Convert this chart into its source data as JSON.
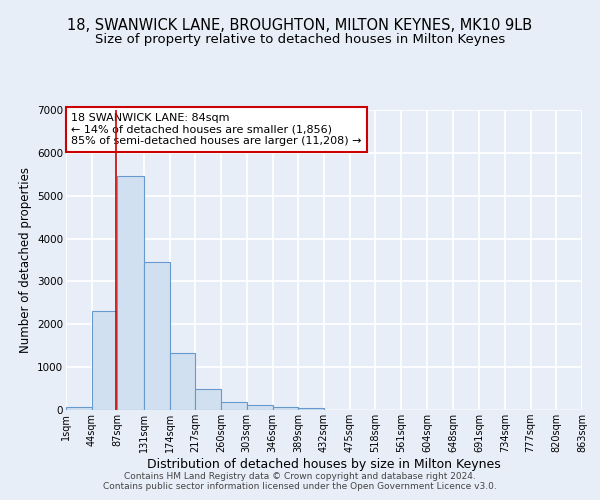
{
  "title1": "18, SWANWICK LANE, BROUGHTON, MILTON KEYNES, MK10 9LB",
  "title2": "Size of property relative to detached houses in Milton Keynes",
  "xlabel": "Distribution of detached houses by size in Milton Keynes",
  "ylabel": "Number of detached properties",
  "footer1": "Contains HM Land Registry data © Crown copyright and database right 2024.",
  "footer2": "Contains public sector information licensed under the Open Government Licence v3.0.",
  "bar_edges": [
    1,
    44,
    87,
    131,
    174,
    217,
    260,
    303,
    346,
    389,
    432,
    475,
    518,
    561,
    604,
    648,
    691,
    734,
    777,
    820,
    863
  ],
  "bar_heights": [
    75,
    2300,
    5450,
    3450,
    1320,
    480,
    190,
    120,
    65,
    40,
    0,
    0,
    0,
    0,
    0,
    0,
    0,
    0,
    0,
    0
  ],
  "bar_color": "#d0e0f0",
  "bar_edgecolor": "#6699cc",
  "property_line_x": 84,
  "property_line_color": "#cc0000",
  "annotation_text": "18 SWANWICK LANE: 84sqm\n← 14% of detached houses are smaller (1,856)\n85% of semi-detached houses are larger (11,208) →",
  "annotation_box_facecolor": "#ffffff",
  "annotation_box_edgecolor": "#cc0000",
  "ylim": [
    0,
    7000
  ],
  "xlim_min": 1,
  "xlim_max": 863,
  "tick_labels": [
    "1sqm",
    "44sqm",
    "87sqm",
    "131sqm",
    "174sqm",
    "217sqm",
    "260sqm",
    "303sqm",
    "346sqm",
    "389sqm",
    "432sqm",
    "475sqm",
    "518sqm",
    "561sqm",
    "604sqm",
    "648sqm",
    "691sqm",
    "734sqm",
    "777sqm",
    "820sqm",
    "863sqm"
  ],
  "background_color": "#e8eef8",
  "plot_bg_color": "#e8eef8",
  "grid_color": "#ffffff",
  "title1_fontsize": 10.5,
  "title2_fontsize": 9.5,
  "xlabel_fontsize": 9,
  "ylabel_fontsize": 8.5,
  "tick_fontsize": 7,
  "annotation_fontsize": 8,
  "footer_fontsize": 6.5,
  "ytick_values": [
    0,
    1000,
    2000,
    3000,
    4000,
    5000,
    6000,
    7000
  ]
}
